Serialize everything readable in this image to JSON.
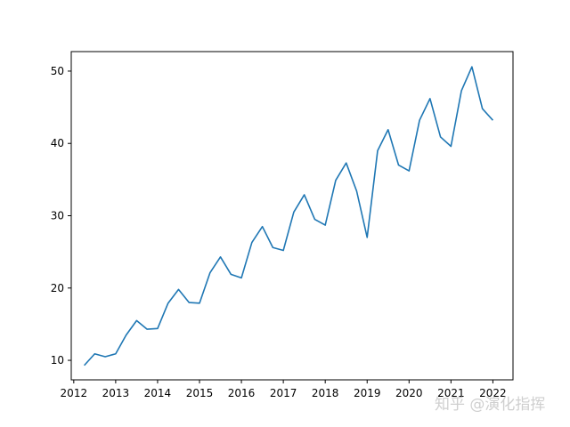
{
  "chart_data": {
    "type": "line",
    "title": "",
    "xlabel": "",
    "ylabel": "",
    "xlim": [
      2011.94,
      2022.48
    ],
    "ylim": [
      7.3,
      52.7
    ],
    "x_ticks": [
      2012,
      2013,
      2014,
      2015,
      2016,
      2017,
      2018,
      2019,
      2020,
      2021,
      2022
    ],
    "x_tick_labels": [
      "2012",
      "2013",
      "2014",
      "2015",
      "2016",
      "2017",
      "2018",
      "2019",
      "2020",
      "2021",
      "2022"
    ],
    "y_ticks": [
      10,
      20,
      30,
      40,
      50
    ],
    "y_tick_labels": [
      "10",
      "20",
      "30",
      "40",
      "50"
    ],
    "grid": false,
    "series": [
      {
        "color": "#1f77b4",
        "x": [
          2012.25,
          2012.5,
          2012.75,
          2013.0,
          2013.25,
          2013.5,
          2013.75,
          2014.0,
          2014.25,
          2014.5,
          2014.75,
          2015.0,
          2015.25,
          2015.5,
          2015.75,
          2016.0,
          2016.25,
          2016.5,
          2016.75,
          2017.0,
          2017.25,
          2017.5,
          2017.75,
          2018.0,
          2018.25,
          2018.5,
          2018.75,
          2019.0,
          2019.25,
          2019.5,
          2019.75,
          2020.0,
          2020.25,
          2020.5,
          2020.75,
          2021.0,
          2021.25,
          2021.5,
          2021.75,
          2022.0
        ],
        "y": [
          9.3,
          10.9,
          10.5,
          10.9,
          13.5,
          15.5,
          14.3,
          14.4,
          17.9,
          19.8,
          18.0,
          17.9,
          22.1,
          24.3,
          21.9,
          21.4,
          26.3,
          28.5,
          25.6,
          25.2,
          30.5,
          32.9,
          29.5,
          28.7,
          34.9,
          37.3,
          33.4,
          27.0,
          39.0,
          41.9,
          37.0,
          36.2,
          43.2,
          46.2,
          40.9,
          39.6,
          47.3,
          50.6,
          44.8,
          43.2
        ]
      }
    ]
  },
  "watermark": "知乎 @演化指挥"
}
